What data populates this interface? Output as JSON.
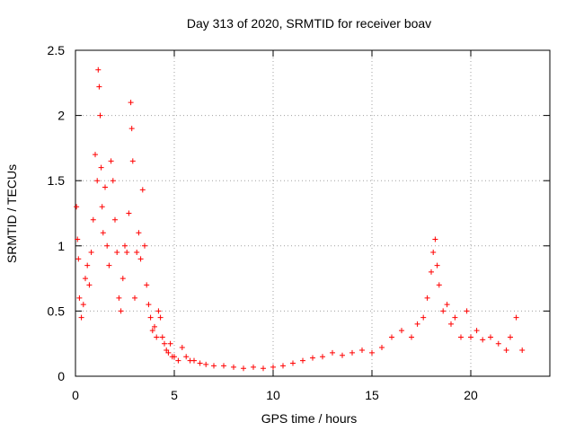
{
  "chart_data": {
    "type": "scatter",
    "title": "Day 313 of 2020, SRMTID for receiver boav",
    "xlabel": "GPS time / hours",
    "ylabel": "SRMTID / TECUs",
    "xlim": [
      0,
      24
    ],
    "ylim": [
      0,
      2.5
    ],
    "xticks": [
      0,
      5,
      10,
      15,
      20
    ],
    "yticks": [
      0,
      0.5,
      1,
      1.5,
      2,
      2.5
    ],
    "xtick_labels": [
      "0",
      "5",
      "10",
      "15",
      "20"
    ],
    "ytick_labels": [
      "0",
      "0.5",
      "1",
      "1.5",
      "2",
      "2.5"
    ],
    "grid": true,
    "marker": "+",
    "color": "#ff0000",
    "series": [
      {
        "name": "SRMTID",
        "x": [
          0.05,
          0.1,
          0.15,
          0.2,
          0.3,
          0.4,
          0.5,
          0.6,
          0.7,
          0.8,
          0.9,
          1.0,
          1.1,
          1.15,
          1.2,
          1.25,
          1.3,
          1.35,
          1.4,
          1.5,
          1.6,
          1.7,
          1.8,
          1.9,
          2.0,
          2.1,
          2.2,
          2.3,
          2.4,
          2.5,
          2.6,
          2.7,
          2.8,
          2.85,
          2.9,
          3.0,
          3.1,
          3.2,
          3.3,
          3.4,
          3.5,
          3.6,
          3.7,
          3.8,
          3.9,
          4.0,
          4.1,
          4.2,
          4.3,
          4.4,
          4.5,
          4.6,
          4.7,
          4.8,
          4.9,
          5.0,
          5.2,
          5.4,
          5.6,
          5.8,
          6.0,
          6.3,
          6.6,
          7.0,
          7.5,
          8.0,
          8.5,
          9.0,
          9.5,
          10.0,
          10.5,
          11.0,
          11.5,
          12.0,
          12.5,
          13.0,
          13.5,
          14.0,
          14.5,
          15.0,
          15.5,
          16.0,
          16.5,
          17.0,
          17.3,
          17.6,
          17.8,
          18.0,
          18.1,
          18.2,
          18.3,
          18.4,
          18.6,
          18.8,
          19.0,
          19.2,
          19.5,
          19.8,
          20.0,
          20.3,
          20.6,
          21.0,
          21.4,
          21.8,
          22.0,
          22.3,
          22.6
        ],
        "y": [
          1.3,
          1.05,
          0.9,
          0.6,
          0.45,
          0.55,
          0.75,
          0.85,
          0.7,
          0.95,
          1.2,
          1.7,
          1.5,
          2.35,
          2.22,
          2.0,
          1.6,
          1.3,
          1.1,
          1.45,
          1.0,
          0.85,
          1.65,
          1.5,
          1.2,
          0.95,
          0.6,
          0.5,
          0.75,
          1.0,
          0.95,
          1.25,
          2.1,
          1.9,
          1.65,
          0.6,
          0.95,
          1.1,
          0.9,
          1.43,
          1.0,
          0.7,
          0.55,
          0.45,
          0.35,
          0.38,
          0.3,
          0.5,
          0.45,
          0.3,
          0.25,
          0.2,
          0.18,
          0.25,
          0.15,
          0.15,
          0.12,
          0.22,
          0.15,
          0.12,
          0.12,
          0.1,
          0.09,
          0.08,
          0.08,
          0.07,
          0.06,
          0.07,
          0.06,
          0.07,
          0.08,
          0.1,
          0.12,
          0.14,
          0.15,
          0.18,
          0.16,
          0.18,
          0.2,
          0.18,
          0.22,
          0.3,
          0.35,
          0.3,
          0.4,
          0.45,
          0.6,
          0.8,
          0.95,
          1.05,
          0.85,
          0.7,
          0.5,
          0.55,
          0.4,
          0.45,
          0.3,
          0.5,
          0.3,
          0.35,
          0.28,
          0.3,
          0.25,
          0.2,
          0.3,
          0.45,
          0.2
        ]
      }
    ]
  }
}
